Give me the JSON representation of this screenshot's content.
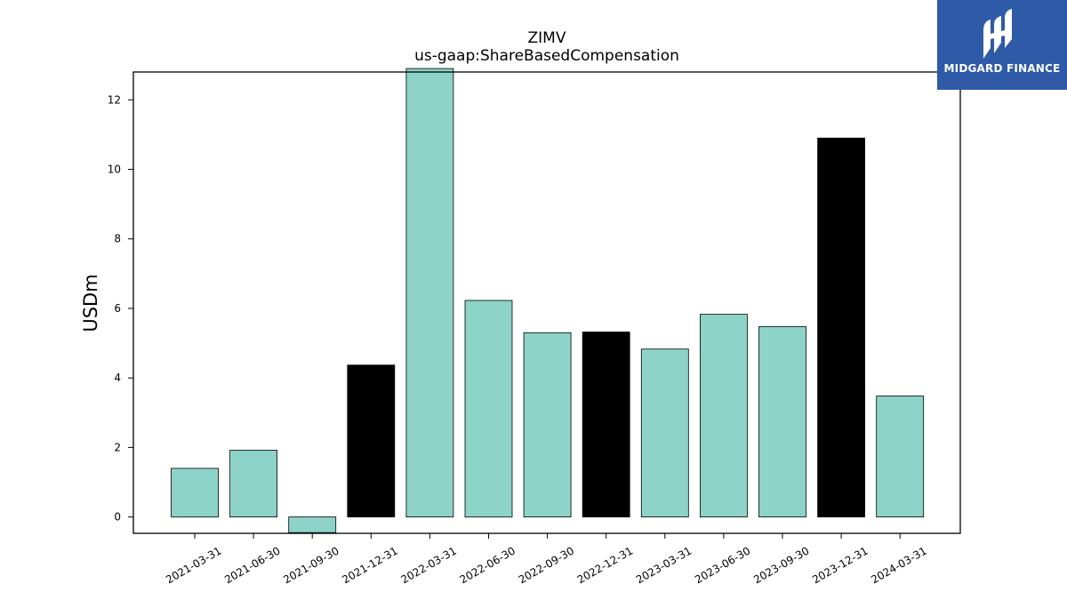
{
  "chart_data": {
    "type": "bar",
    "title": "ZIMV",
    "subtitle": "us-gaap:ShareBasedCompensation",
    "xlabel": "",
    "ylabel": "USDm",
    "categories": [
      "2021-03-31",
      "2021-06-30",
      "2021-09-30",
      "2021-12-31",
      "2022-03-31",
      "2022-06-30",
      "2022-09-30",
      "2022-12-31",
      "2023-03-31",
      "2023-06-30",
      "2023-09-30",
      "2023-12-31",
      "2024-03-31"
    ],
    "values": [
      1.4,
      1.92,
      -0.45,
      4.37,
      12.9,
      6.23,
      5.3,
      5.32,
      4.83,
      5.83,
      5.48,
      10.9,
      3.48
    ],
    "highlight": [
      false,
      false,
      false,
      true,
      false,
      false,
      false,
      true,
      false,
      false,
      false,
      true,
      false
    ],
    "colors": {
      "normal": "#8dd3c7",
      "highlight": "#000000"
    },
    "ylim": [
      -0.47,
      12.8
    ],
    "yticks": [
      0,
      2,
      4,
      6,
      8,
      10,
      12
    ],
    "grid": false,
    "legend": "none"
  },
  "logo": {
    "text": "MIDGARD FINANCE",
    "icon": "midgard-logo-icon"
  }
}
